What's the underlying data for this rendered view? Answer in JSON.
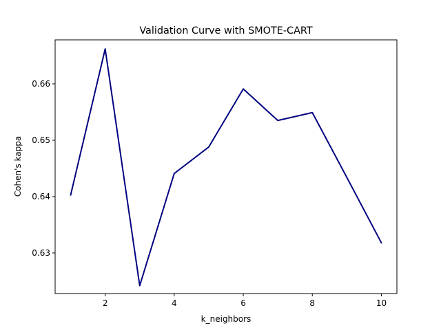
{
  "chart_data": {
    "type": "line",
    "title": "Validation Curve with SMOTE-CART",
    "xlabel": "k_neighbors",
    "ylabel": "Cohen's kappa",
    "xlim": [
      0.55,
      10.45
    ],
    "ylim": [
      0.6228,
      0.6678
    ],
    "xticks": [
      2,
      4,
      6,
      8,
      10
    ],
    "yticks": [
      0.63,
      0.64,
      0.65,
      0.66
    ],
    "ytick_labels": [
      "0.63",
      "0.64",
      "0.65",
      "0.66"
    ],
    "grid": false,
    "series": [
      {
        "color": "#000080",
        "x": [
          1,
          2,
          3,
          4,
          5,
          6,
          7,
          8,
          9,
          10
        ],
        "y": [
          0.6403,
          0.6662,
          0.6242,
          0.6441,
          0.6488,
          0.6591,
          0.6535,
          0.6549,
          0.6434,
          0.6318
        ]
      }
    ]
  }
}
